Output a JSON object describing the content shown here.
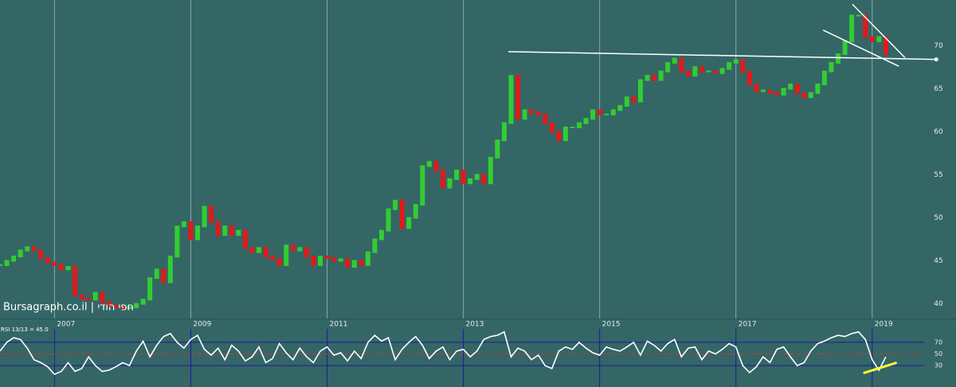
{
  "chart_data": [
    {
      "type": "candlestick",
      "annotation": "Bursagraph.co.il | חפי הודי",
      "x": [
        2006.2,
        2006.3,
        2006.4,
        2006.5,
        2006.6,
        2006.7,
        2006.8,
        2006.9,
        2007.0,
        2007.1,
        2007.2,
        2007.3,
        2007.4,
        2007.5,
        2007.6,
        2007.7,
        2007.8,
        2007.9,
        2008.0,
        2008.1,
        2008.2,
        2008.3,
        2008.4,
        2008.5,
        2008.6,
        2008.7,
        2008.8,
        2008.9,
        2009.0,
        2009.1,
        2009.2,
        2009.3,
        2009.4,
        2009.5,
        2009.6,
        2009.7,
        2009.8,
        2009.9,
        2010.0,
        2010.1,
        2010.2,
        2010.3,
        2010.4,
        2010.5,
        2010.6,
        2010.7,
        2010.8,
        2010.9,
        2011.0,
        2011.1,
        2011.2,
        2011.3,
        2011.4,
        2011.5,
        2011.6,
        2011.7,
        2011.8,
        2011.9,
        2012.0,
        2012.1,
        2012.2,
        2012.3,
        2012.4,
        2012.5,
        2012.6,
        2012.7,
        2012.8,
        2012.9,
        2013.0,
        2013.1,
        2013.2,
        2013.3,
        2013.4,
        2013.5,
        2013.6,
        2013.7,
        2013.8,
        2013.9,
        2014.0,
        2014.1,
        2014.2,
        2014.3,
        2014.4,
        2014.5,
        2014.6,
        2014.7,
        2014.8,
        2014.9,
        2015.0,
        2015.1,
        2015.2,
        2015.3,
        2015.4,
        2015.5,
        2015.6,
        2015.7,
        2015.8,
        2015.9,
        2016.0,
        2016.1,
        2016.2,
        2016.3,
        2016.4,
        2016.5,
        2016.6,
        2016.7,
        2016.8,
        2016.9,
        2017.0,
        2017.1,
        2017.2,
        2017.3,
        2017.4,
        2017.5,
        2017.6,
        2017.7,
        2017.8,
        2017.9,
        2018.0,
        2018.1,
        2018.2,
        2018.3,
        2018.4,
        2018.5,
        2018.6,
        2018.7,
        2018.8,
        2018.9,
        2019.0,
        2019.1,
        2019.2
      ],
      "values": [
        44.5,
        45,
        45.5,
        46.2,
        46.6,
        46.2,
        45.3,
        44.8,
        44.5,
        44,
        44.3,
        41,
        40.6,
        40.5,
        41.3,
        40.2,
        39.8,
        39.6,
        39.5,
        39.6,
        40,
        40.5,
        43,
        44,
        42.5,
        45.5,
        49,
        49.5,
        47.5,
        49,
        51.3,
        49.5,
        48,
        49,
        48,
        48.5,
        46.5,
        46,
        46.5,
        45.5,
        45.2,
        44.5,
        46.8,
        46.2,
        46.5,
        45.5,
        44.5,
        45.5,
        45.3,
        45,
        45.2,
        44.3,
        45,
        44.5,
        46,
        47.5,
        48.5,
        51,
        52,
        48.8,
        50,
        51.5,
        56,
        56.5,
        55.5,
        53.5,
        54.5,
        55.5,
        54,
        54.5,
        55,
        54,
        57,
        59,
        61,
        66.5,
        61.5,
        62.5,
        62.2,
        62,
        61,
        60,
        59,
        60.5,
        60.5,
        61,
        61.5,
        62.5,
        62,
        62,
        62.5,
        63,
        64,
        63.5,
        66,
        66.5,
        66,
        67,
        68,
        68.5,
        67,
        66.5,
        67.5,
        67,
        67,
        66.8,
        67.3,
        68,
        68.3,
        67,
        65.5,
        64.7,
        64.8,
        64.5,
        64.3,
        65,
        65.5,
        64.5,
        64,
        64.5,
        65.5,
        67,
        68,
        69,
        70.5,
        73.5,
        73.5,
        71,
        70.5,
        71,
        69
      ],
      "up_color": "#33cc33",
      "down_color": "#e01a1a",
      "xlim": [
        2006.2,
        2020.23
      ],
      "xticks": [
        2007,
        2009,
        2011,
        2013,
        2015,
        2017,
        2019
      ],
      "ylim": [
        38.3,
        75.3
      ],
      "yticks": [
        40,
        45,
        50,
        55,
        60,
        65,
        70
      ],
      "grid": true,
      "grid_color": "#8aa8a8",
      "trendlines": [
        {
          "x": [
            2013.66,
            2019.94
          ],
          "y": [
            69.3,
            68.4
          ],
          "color": "#ffffff",
          "end_marker": true
        },
        {
          "x": [
            2018.71,
            2019.48
          ],
          "y": [
            74.8,
            68.6
          ],
          "color": "#ffffff"
        },
        {
          "x": [
            2018.28,
            2019.39
          ],
          "y": [
            71.8,
            67.6
          ],
          "color": "#ffffff"
        }
      ]
    },
    {
      "type": "line",
      "title": "RSI 13/13 = 45.0",
      "x": [
        2006.2,
        2006.3,
        2006.4,
        2006.5,
        2006.6,
        2006.7,
        2006.8,
        2006.9,
        2007.0,
        2007.1,
        2007.2,
        2007.3,
        2007.4,
        2007.5,
        2007.6,
        2007.7,
        2007.8,
        2007.9,
        2008.0,
        2008.1,
        2008.2,
        2008.3,
        2008.4,
        2008.5,
        2008.6,
        2008.7,
        2008.8,
        2008.9,
        2009.0,
        2009.1,
        2009.2,
        2009.3,
        2009.4,
        2009.5,
        2009.6,
        2009.7,
        2009.8,
        2009.9,
        2010.0,
        2010.1,
        2010.2,
        2010.3,
        2010.4,
        2010.5,
        2010.6,
        2010.7,
        2010.8,
        2010.9,
        2011.0,
        2011.1,
        2011.2,
        2011.3,
        2011.4,
        2011.5,
        2011.6,
        2011.7,
        2011.8,
        2011.9,
        2012.0,
        2012.1,
        2012.2,
        2012.3,
        2012.4,
        2012.5,
        2012.6,
        2012.7,
        2012.8,
        2012.9,
        2013.0,
        2013.1,
        2013.2,
        2013.3,
        2013.4,
        2013.5,
        2013.6,
        2013.7,
        2013.8,
        2013.9,
        2014.0,
        2014.1,
        2014.2,
        2014.3,
        2014.4,
        2014.5,
        2014.6,
        2014.7,
        2014.8,
        2014.9,
        2015.0,
        2015.1,
        2015.2,
        2015.3,
        2015.4,
        2015.5,
        2015.6,
        2015.7,
        2015.8,
        2015.9,
        2016.0,
        2016.1,
        2016.2,
        2016.3,
        2016.4,
        2016.5,
        2016.6,
        2016.7,
        2016.8,
        2016.9,
        2017.0,
        2017.1,
        2017.2,
        2017.3,
        2017.4,
        2017.5,
        2017.6,
        2017.7,
        2017.8,
        2017.9,
        2018.0,
        2018.1,
        2018.2,
        2018.3,
        2018.4,
        2018.5,
        2018.6,
        2018.7,
        2018.8,
        2018.9,
        2019.0,
        2019.1,
        2019.2
      ],
      "values": [
        55,
        70,
        78,
        75,
        60,
        40,
        35,
        28,
        15,
        20,
        35,
        20,
        25,
        45,
        30,
        20,
        22,
        28,
        35,
        30,
        55,
        72,
        45,
        65,
        80,
        85,
        70,
        60,
        75,
        82,
        58,
        48,
        60,
        40,
        65,
        55,
        38,
        45,
        62,
        35,
        42,
        68,
        52,
        40,
        60,
        45,
        35,
        55,
        62,
        48,
        52,
        38,
        55,
        42,
        70,
        82,
        72,
        78,
        40,
        58,
        70,
        80,
        65,
        42,
        55,
        62,
        40,
        55,
        58,
        45,
        55,
        75,
        80,
        82,
        88,
        45,
        60,
        55,
        40,
        48,
        30,
        25,
        55,
        62,
        58,
        70,
        60,
        52,
        48,
        62,
        58,
        55,
        62,
        70,
        48,
        72,
        65,
        55,
        68,
        75,
        45,
        60,
        62,
        40,
        55,
        50,
        58,
        68,
        62,
        30,
        18,
        28,
        45,
        35,
        58,
        62,
        45,
        30,
        35,
        55,
        68,
        72,
        78,
        82,
        80,
        85,
        88,
        75,
        40,
        22,
        45
      ],
      "color": "#ffffff",
      "ylim": [
        0,
        100
      ],
      "yticks": [
        30,
        50,
        70
      ],
      "ytick_colors": [
        "#1a1aa0",
        "#cc3333",
        "#1a1aa0"
      ],
      "ytick_styles": [
        "solid",
        "dashed",
        "solid"
      ],
      "vline_color": "#1a1aa0",
      "trendlines": [
        {
          "x": [
            2018.87,
            2019.36
          ],
          "y": [
            17,
            35
          ],
          "color": "#ffff33"
        }
      ]
    }
  ]
}
